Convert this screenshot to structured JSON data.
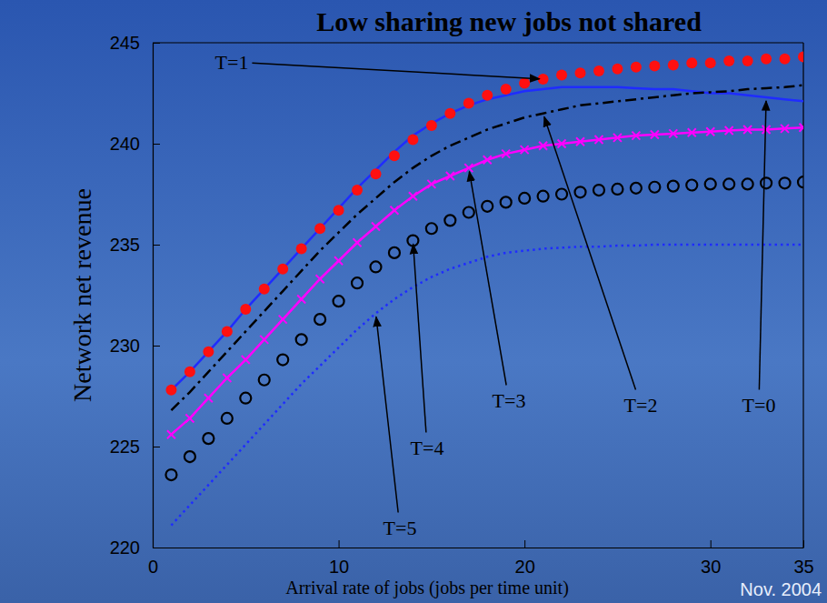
{
  "chart_data": {
    "type": "line",
    "title": "Low sharing new jobs not shared",
    "x_label": "Arrival rate of jobs (jobs per time unit)",
    "y_label": "Network net revenue",
    "annotations": [
      "Nov. 2004"
    ],
    "x": [
      1,
      2,
      3,
      4,
      5,
      6,
      7,
      8,
      9,
      10,
      11,
      12,
      13,
      14,
      15,
      16,
      17,
      18,
      19,
      20,
      21,
      22,
      23,
      24,
      25,
      26,
      27,
      28,
      29,
      30,
      31,
      32,
      33,
      34,
      35
    ],
    "series": [
      {
        "name": "T=0",
        "color": "#1f2cff",
        "line_style": "solid",
        "marker": "none",
        "values": [
          227.8,
          228.7,
          229.7,
          230.7,
          231.8,
          232.8,
          233.8,
          234.8,
          235.8,
          236.8,
          237.8,
          238.7,
          239.6,
          240.4,
          241.0,
          241.5,
          241.9,
          242.2,
          242.4,
          242.6,
          242.7,
          242.8,
          242.8,
          242.8,
          242.8,
          242.75,
          242.7,
          242.7,
          242.6,
          242.5,
          242.5,
          242.4,
          242.3,
          242.2,
          242.1
        ]
      },
      {
        "name": "T=1",
        "color": "#ff1010",
        "line_style": "none",
        "marker": "circle",
        "values": [
          227.8,
          228.7,
          229.7,
          230.7,
          231.8,
          232.8,
          233.8,
          234.8,
          235.8,
          236.7,
          237.7,
          238.5,
          239.4,
          240.2,
          240.9,
          241.5,
          242.0,
          242.4,
          242.7,
          243.0,
          243.2,
          243.4,
          243.5,
          243.6,
          243.7,
          243.8,
          243.85,
          243.9,
          244.0,
          244.0,
          244.1,
          244.1,
          244.2,
          244.2,
          244.3
        ]
      },
      {
        "name": "T=2",
        "color": "#000000",
        "line_style": "dashdot",
        "marker": "none",
        "values": [
          226.8,
          227.7,
          228.7,
          229.7,
          230.7,
          231.7,
          232.7,
          233.7,
          234.7,
          235.6,
          236.5,
          237.3,
          238.1,
          238.8,
          239.4,
          239.9,
          240.3,
          240.7,
          241.0,
          241.3,
          241.5,
          241.7,
          241.9,
          242.0,
          242.1,
          242.2,
          242.3,
          242.4,
          242.5,
          242.55,
          242.6,
          242.7,
          242.75,
          242.8,
          242.9
        ]
      },
      {
        "name": "T=3",
        "color": "#ff00ff",
        "line_style": "solid",
        "marker": "x",
        "values": [
          225.6,
          226.4,
          227.4,
          228.4,
          229.3,
          230.3,
          231.3,
          232.3,
          233.3,
          234.2,
          235.1,
          235.9,
          236.7,
          237.4,
          238.0,
          238.4,
          238.8,
          239.2,
          239.5,
          239.7,
          239.9,
          240.0,
          240.1,
          240.2,
          240.3,
          240.4,
          240.45,
          240.5,
          240.55,
          240.6,
          240.65,
          240.7,
          240.7,
          240.75,
          240.8
        ]
      },
      {
        "name": "T=4",
        "color": "#000000",
        "line_style": "none",
        "marker": "circle-open",
        "values": [
          223.6,
          224.5,
          225.4,
          226.4,
          227.4,
          228.3,
          229.3,
          230.3,
          231.3,
          232.2,
          233.1,
          233.9,
          234.6,
          235.2,
          235.8,
          236.2,
          236.6,
          236.9,
          237.1,
          237.3,
          237.4,
          237.5,
          237.6,
          237.7,
          237.75,
          237.8,
          237.85,
          237.9,
          237.95,
          238.0,
          238.0,
          238.0,
          238.05,
          238.05,
          238.1
        ]
      },
      {
        "name": "T=5",
        "color": "#1f2cff",
        "line_style": "dotted",
        "marker": "none",
        "values": [
          221.1,
          222.1,
          223.1,
          224.1,
          225.1,
          226.1,
          227.1,
          228.1,
          229.0,
          229.9,
          230.8,
          231.6,
          232.3,
          232.9,
          233.4,
          233.8,
          234.1,
          234.4,
          234.6,
          234.7,
          234.8,
          234.85,
          234.9,
          234.9,
          234.95,
          234.95,
          235.0,
          235.0,
          235.0,
          235.0,
          235.0,
          235.0,
          235.0,
          235.0,
          235.0
        ]
      }
    ],
    "xlim": [
      0,
      35
    ],
    "xticks": [
      0,
      10,
      20,
      30,
      35
    ],
    "ylim": [
      220,
      245
    ],
    "yticks": [
      220,
      225,
      230,
      235,
      240,
      245
    ],
    "grid": false
  }
}
